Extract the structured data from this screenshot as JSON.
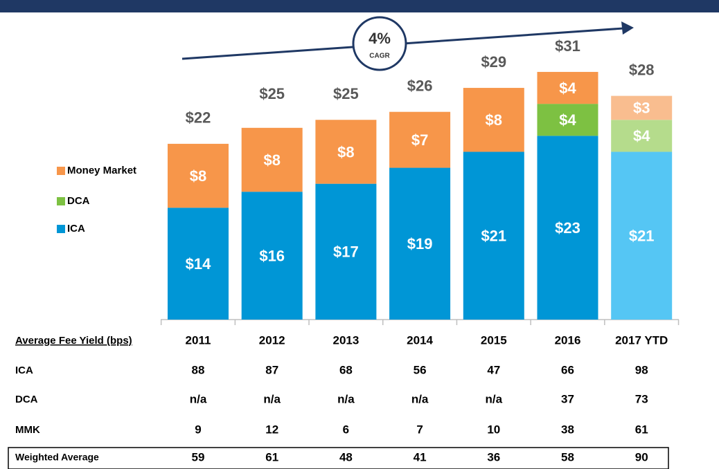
{
  "chart_data": {
    "type": "bar",
    "stacked": true,
    "categories": [
      "2011",
      "2012",
      "2013",
      "2014",
      "2015",
      "2016",
      "2017 YTD"
    ],
    "series": [
      {
        "name": "ICA",
        "colors": [
          "#0096d6",
          "#0096d6",
          "#0096d6",
          "#0096d6",
          "#0096d6",
          "#0096d6",
          "#55c6f4"
        ],
        "values": [
          14,
          16,
          17,
          19,
          21,
          23,
          21
        ],
        "value_labels": [
          "$14",
          "$16",
          "$17",
          "$19",
          "$21",
          "$23",
          "$21"
        ]
      },
      {
        "name": "DCA",
        "colors": [
          "#7dc142",
          "#7dc142",
          "#7dc142",
          "#7dc142",
          "#7dc142",
          "#7dc142",
          "#b5dc8c"
        ],
        "values": [
          null,
          null,
          null,
          null,
          null,
          4,
          4
        ],
        "value_labels": [
          null,
          null,
          null,
          null,
          null,
          "$4",
          "$4"
        ]
      },
      {
        "name": "Money Market",
        "colors": [
          "#f7964a",
          "#f7964a",
          "#f7964a",
          "#f7964a",
          "#f7964a",
          "#f7964a",
          "#f9bd8f"
        ],
        "values": [
          8,
          8,
          8,
          7,
          8,
          4,
          3
        ],
        "value_labels": [
          "$8",
          "$8",
          "$8",
          "$7",
          "$8",
          "$4",
          "$3"
        ]
      }
    ],
    "totals": [
      22,
      25,
      25,
      26,
      29,
      31,
      28
    ],
    "total_labels": [
      "$22",
      "$25",
      "$25",
      "$26",
      "$29",
      "$31",
      "$28"
    ],
    "annotation": {
      "value": "4%",
      "label": "CAGR"
    }
  },
  "table": {
    "header": "Average Fee Yield (bps)",
    "rows": [
      {
        "label": "ICA",
        "values": [
          88,
          87,
          68,
          56,
          47,
          66,
          98
        ]
      },
      {
        "label": "DCA",
        "values": [
          "n/a",
          "n/a",
          "n/a",
          "n/a",
          "n/a",
          37,
          73
        ]
      },
      {
        "label": "MMK",
        "values": [
          9,
          12,
          6,
          7,
          10,
          38,
          61
        ]
      },
      {
        "label": "Weighted Average",
        "values": [
          59,
          61,
          48,
          41,
          36,
          58,
          90
        ]
      }
    ]
  }
}
